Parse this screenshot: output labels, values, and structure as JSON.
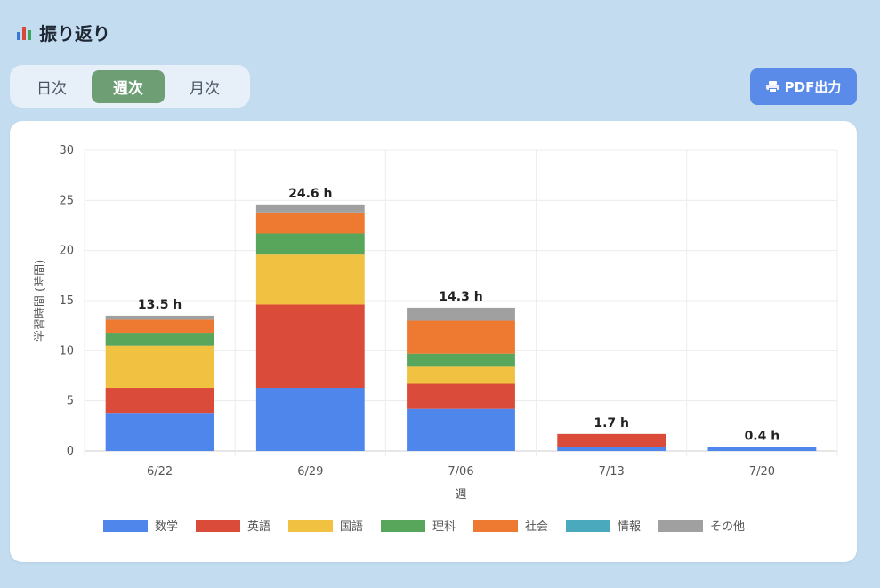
{
  "header": {
    "icon": "bar-chart-icon",
    "title": "振り返り"
  },
  "tabs": [
    {
      "label": "日次",
      "active": false
    },
    {
      "label": "週次",
      "active": true
    },
    {
      "label": "月次",
      "active": false
    }
  ],
  "pdf_button": {
    "label": "PDF出力",
    "icon": "printer-icon"
  },
  "colors": {
    "page_bg": "#c3dcf0",
    "active_tab": "#6e9e74",
    "pdf_button": "#5b8be8"
  },
  "chart_data": {
    "type": "bar",
    "stacked": true,
    "categories": [
      "6/22",
      "6/29",
      "7/06",
      "7/13",
      "7/20"
    ],
    "xlabel": "週",
    "ylabel": "学習時間 (時間)",
    "ylim": [
      0,
      30
    ],
    "yticks": [
      0,
      5,
      10,
      15,
      20,
      25,
      30
    ],
    "grid": true,
    "legend_position": "bottom",
    "totals": [
      "13.5 h",
      "24.6 h",
      "14.3 h",
      "1.7 h",
      "0.4 h"
    ],
    "series": [
      {
        "name": "数学",
        "color": "#4f86ec",
        "values": [
          3.8,
          6.3,
          4.2,
          0.4,
          0.4
        ]
      },
      {
        "name": "英語",
        "color": "#db4b3a",
        "values": [
          2.5,
          8.3,
          2.5,
          1.3,
          0.0
        ]
      },
      {
        "name": "国語",
        "color": "#f1c142",
        "values": [
          4.2,
          5.0,
          1.7,
          0.0,
          0.0
        ]
      },
      {
        "name": "理科",
        "color": "#58a55c",
        "values": [
          1.3,
          2.1,
          1.3,
          0.0,
          0.0
        ]
      },
      {
        "name": "社会",
        "color": "#ee7a31",
        "values": [
          1.3,
          2.1,
          3.3,
          0.0,
          0.0
        ]
      },
      {
        "name": "情報",
        "color": "#4aa9bc",
        "values": [
          0.0,
          0.0,
          0.0,
          0.0,
          0.0
        ]
      },
      {
        "name": "その他",
        "color": "#a0a0a0",
        "values": [
          0.4,
          0.8,
          1.3,
          0.0,
          0.0
        ]
      }
    ]
  }
}
